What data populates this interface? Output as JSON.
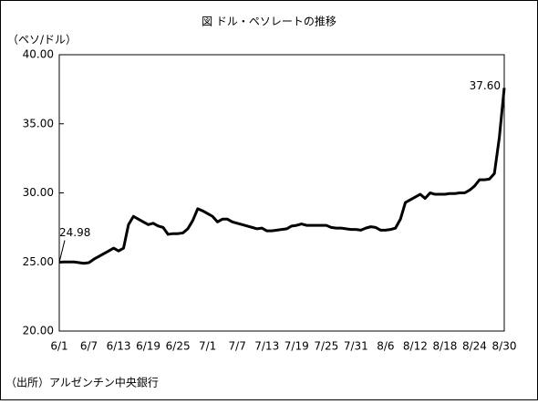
{
  "chart_data": {
    "type": "line",
    "title": "図 ドル・ペソレートの推移",
    "y_label": "（ペソ/ドル）",
    "source": "（出所）アルゼンチン中央銀行",
    "categories": [
      "6/1",
      null,
      null,
      null,
      null,
      null,
      "6/7",
      null,
      null,
      null,
      null,
      null,
      "6/13",
      null,
      null,
      null,
      null,
      null,
      "6/19",
      null,
      null,
      null,
      null,
      null,
      "6/25",
      null,
      null,
      null,
      null,
      null,
      "7/1",
      null,
      null,
      null,
      null,
      null,
      "7/7",
      null,
      null,
      null,
      null,
      null,
      "7/13",
      null,
      null,
      null,
      null,
      null,
      "7/19",
      null,
      null,
      null,
      null,
      null,
      "7/25",
      null,
      null,
      null,
      null,
      null,
      "7/31",
      null,
      null,
      null,
      null,
      null,
      "8/6",
      null,
      null,
      null,
      null,
      null,
      "8/12",
      null,
      null,
      null,
      null,
      null,
      "8/18",
      null,
      null,
      null,
      null,
      null,
      "8/24",
      null,
      null,
      null,
      null,
      null,
      "8/30"
    ],
    "values": [
      24.98,
      25.0,
      25.0,
      25.0,
      24.95,
      24.9,
      24.95,
      25.2,
      25.4,
      25.6,
      25.8,
      26.0,
      25.8,
      26.0,
      27.7,
      28.3,
      28.1,
      27.9,
      27.7,
      27.8,
      27.6,
      27.5,
      27.0,
      27.05,
      27.05,
      27.1,
      27.4,
      28.0,
      28.85,
      28.7,
      28.5,
      28.3,
      27.9,
      28.1,
      28.1,
      27.9,
      27.8,
      27.7,
      27.6,
      27.5,
      27.4,
      27.45,
      27.25,
      27.25,
      27.3,
      27.35,
      27.4,
      27.6,
      27.65,
      27.75,
      27.65,
      27.65,
      27.65,
      27.65,
      27.65,
      27.5,
      27.45,
      27.45,
      27.4,
      27.35,
      27.35,
      27.3,
      27.45,
      27.55,
      27.5,
      27.3,
      27.3,
      27.35,
      27.45,
      28.1,
      29.3,
      29.5,
      29.7,
      29.9,
      29.6,
      30.0,
      29.9,
      29.9,
      29.9,
      29.95,
      29.95,
      30.0,
      30.0,
      30.2,
      30.5,
      30.95,
      30.95,
      31.0,
      31.4,
      34.0,
      37.6
    ],
    "value_labels": [
      "24.98",
      null,
      null,
      null,
      null,
      null,
      null,
      null,
      null,
      null,
      null,
      null,
      null,
      null,
      null,
      null,
      null,
      null,
      null,
      null,
      null,
      null,
      null,
      null,
      null,
      null,
      null,
      null,
      null,
      null,
      null,
      null,
      null,
      null,
      null,
      null,
      null,
      null,
      null,
      null,
      null,
      null,
      null,
      null,
      null,
      null,
      null,
      null,
      null,
      null,
      null,
      null,
      null,
      null,
      null,
      null,
      null,
      null,
      null,
      null,
      null,
      null,
      null,
      null,
      null,
      null,
      null,
      null,
      null,
      null,
      null,
      null,
      null,
      null,
      null,
      null,
      null,
      null,
      null,
      null,
      null,
      null,
      null,
      null,
      null,
      null,
      null,
      null,
      null,
      null,
      "37.60"
    ],
    "color": "#000000",
    "ylim": [
      20,
      40
    ],
    "yticks": [
      {
        "value": 20,
        "label": "20.00"
      },
      {
        "value": 25,
        "label": "25.00"
      },
      {
        "value": 30,
        "label": "30.00"
      },
      {
        "value": 35,
        "label": "35.00"
      },
      {
        "value": 40,
        "label": "40.00"
      }
    ],
    "grid": false
  }
}
